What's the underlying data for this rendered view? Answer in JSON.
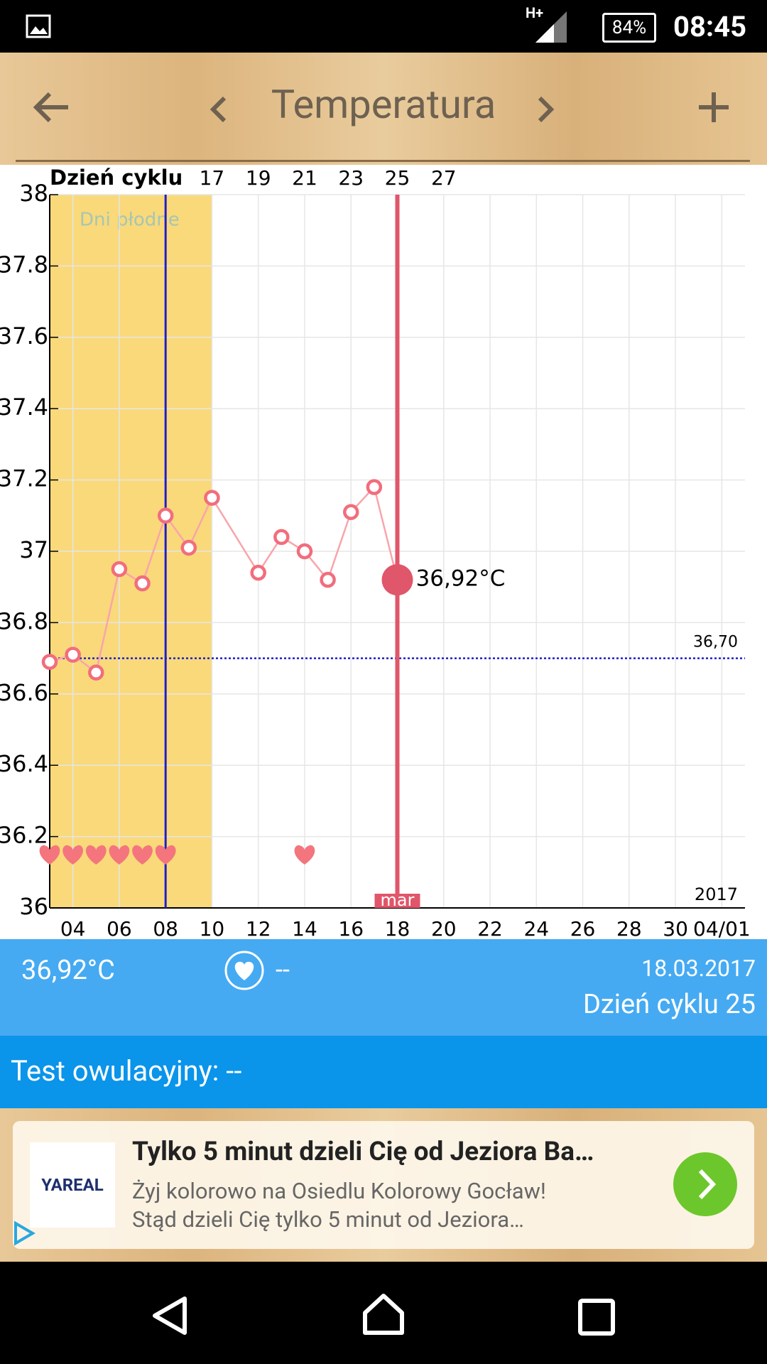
{
  "status_bar": {
    "network": "H+",
    "battery": "84%",
    "time": "08:45"
  },
  "toolbar": {
    "title": "Temperatura"
  },
  "chart_data": {
    "type": "line",
    "top_axis_label": "Dzień cyklu",
    "top_ticks": [
      {
        "value": 10,
        "label": "17"
      },
      {
        "value": 12,
        "label": "19"
      },
      {
        "value": 14,
        "label": "21"
      },
      {
        "value": 16,
        "label": "23"
      },
      {
        "value": 18,
        "label": "25"
      },
      {
        "value": 20,
        "label": "27"
      }
    ],
    "fertile_window": {
      "label": "Dni płodne",
      "x": [
        3,
        10
      ],
      "color": "#f9d97a"
    },
    "ovulation_x": 8,
    "series": [
      {
        "name": "Temperatura",
        "color": "#f26d7d",
        "x": [
          3,
          4,
          5,
          6,
          7,
          8,
          9,
          10,
          12,
          13,
          14,
          15,
          16,
          17,
          18
        ],
        "values": [
          36.69,
          36.71,
          36.66,
          36.95,
          36.91,
          37.1,
          37.01,
          37.15,
          36.94,
          37.04,
          37.0,
          36.92,
          37.11,
          37.18,
          36.92
        ]
      }
    ],
    "today": {
      "x": 18,
      "value": 36.92,
      "value_label": "36,92°C",
      "month_label": "mar",
      "color": "#e0566a"
    },
    "coverline": {
      "value": 36.7,
      "label": "36,70"
    },
    "hearts_x": [
      3,
      4,
      5,
      6,
      7,
      8,
      14
    ],
    "year_label": "2017",
    "xlim": [
      3,
      33
    ],
    "xticks": [
      {
        "value": 4,
        "label": "04"
      },
      {
        "value": 6,
        "label": "06"
      },
      {
        "value": 8,
        "label": "08"
      },
      {
        "value": 10,
        "label": "10"
      },
      {
        "value": 12,
        "label": "12"
      },
      {
        "value": 14,
        "label": "14"
      },
      {
        "value": 16,
        "label": "16"
      },
      {
        "value": 18,
        "label": "18"
      },
      {
        "value": 20,
        "label": "20"
      },
      {
        "value": 22,
        "label": "22"
      },
      {
        "value": 24,
        "label": "24"
      },
      {
        "value": 26,
        "label": "26"
      },
      {
        "value": 28,
        "label": "28"
      },
      {
        "value": 30,
        "label": "30"
      },
      {
        "value": 32,
        "label": "04/01"
      }
    ],
    "ylim": [
      36,
      38
    ],
    "yticks": [
      36,
      36.2,
      36.4,
      36.6,
      36.8,
      37,
      37.2,
      37.4,
      37.6,
      37.8,
      38
    ],
    "grid": true
  },
  "info": {
    "temperature": "36,92°C",
    "intercourse": "--",
    "date": "18.03.2017",
    "cycle_day": "Dzień cyklu 25",
    "ovulation_test": "Test owulacyjny: --"
  },
  "ad": {
    "logo": "YAREAL",
    "title": "Tylko 5 minut dzieli Cię od Jeziora Ba…",
    "line1": "Żyj kolorowo na Osiedlu Kolorowy Gocław!",
    "line2": "Stąd dzieli Cię tylko 5 minut od Jeziora…"
  }
}
